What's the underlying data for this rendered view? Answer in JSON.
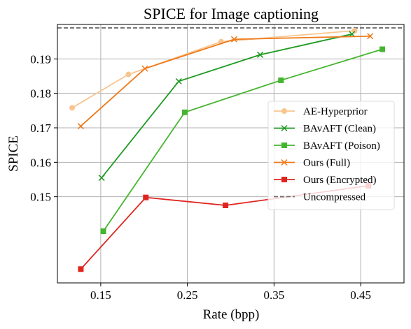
{
  "chart_data": {
    "type": "line",
    "title": "SPICE for Image captioning",
    "xlabel": "Rate (bpp)",
    "ylabel": "SPICE",
    "xlim": [
      0.1,
      0.5
    ],
    "ylim": [
      0.125,
      0.2
    ],
    "xticks": [
      0.15,
      0.25,
      0.35,
      0.45
    ],
    "xtick_labels": [
      "0.15",
      "0.25",
      "0.35",
      "0.45"
    ],
    "yticks": [
      0.15,
      0.16,
      0.17,
      0.18,
      0.19
    ],
    "ytick_labels": [
      "0.15",
      "0.16",
      "0.17",
      "0.18",
      "0.19"
    ],
    "grid": true,
    "legend_position": "center-right",
    "series": [
      {
        "name": "AE-Hyperprior",
        "color": "#f8c48f",
        "marker": "circle",
        "x": [
          0.117,
          0.182,
          0.289,
          0.443
        ],
        "y": [
          0.1758,
          0.1855,
          0.195,
          0.1982
        ]
      },
      {
        "name": "BAvAFT (Clean)",
        "color": "#1f9a22",
        "marker": "x",
        "x": [
          0.151,
          0.24,
          0.334,
          0.44
        ],
        "y": [
          0.1555,
          0.1835,
          0.1912,
          0.1972
        ]
      },
      {
        "name": "BAvAFT (Poison)",
        "color": "#44b52e",
        "marker": "square",
        "x": [
          0.153,
          0.247,
          0.358,
          0.475
        ],
        "y": [
          0.14,
          0.1745,
          0.1838,
          0.1928
        ]
      },
      {
        "name": "Ours (Full)",
        "color": "#ee7a1a",
        "marker": "x",
        "x": [
          0.127,
          0.201,
          0.304,
          0.461
        ],
        "y": [
          0.1705,
          0.1872,
          0.1957,
          0.1966
        ]
      },
      {
        "name": "Ours (Encrypted)",
        "color": "#e0241f",
        "marker": "square",
        "x": [
          0.127,
          0.202,
          0.294,
          0.459
        ],
        "y": [
          0.129,
          0.1498,
          0.1475,
          0.1532
        ]
      }
    ],
    "reference_line": {
      "name": "Uncompressed",
      "y": 0.199,
      "color": "#707070",
      "style": "dashed"
    }
  }
}
